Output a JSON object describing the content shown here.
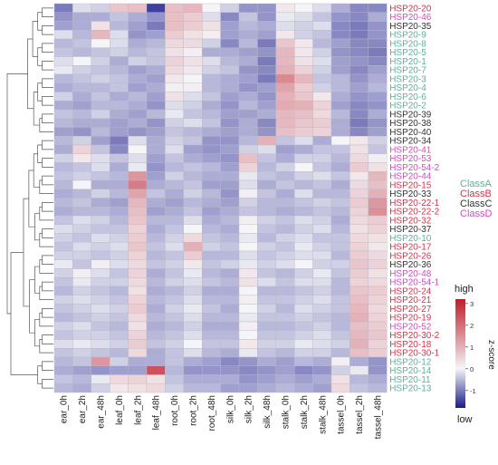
{
  "chart_data": {
    "type": "heatmap",
    "columns": [
      "ear_0h",
      "ear_2h",
      "ear_48h",
      "leaf_0h",
      "leaf_2h",
      "leaf_48h",
      "root_0h",
      "root_2h",
      "root_48h",
      "silk_0h",
      "silk_2h",
      "silk_48h",
      "stalk_0h",
      "stalk_2h",
      "stalk_48h",
      "tassel_0h",
      "tassel_2h",
      "tassel_48h"
    ],
    "rows": [
      {
        "label": "HSP20-20",
        "class": "ClassB",
        "values": [
          -1.0,
          -0.2,
          -0.3,
          0.7,
          0.8,
          -1.5,
          0.8,
          0.9,
          0.0,
          -0.3,
          -0.8,
          -0.8,
          0.2,
          0.0,
          -0.2,
          -0.6,
          -0.9,
          -0.9
        ]
      },
      {
        "label": "HSP20-46",
        "class": "ClassD",
        "values": [
          -0.8,
          -0.6,
          -0.6,
          -0.4,
          -0.6,
          -0.8,
          0.8,
          0.6,
          -0.2,
          -0.9,
          -0.4,
          -0.8,
          -0.1,
          -0.2,
          -0.4,
          -0.8,
          -0.9,
          -0.6
        ]
      },
      {
        "label": "HSP20-35",
        "class": "ClassC",
        "values": [
          -0.7,
          -0.6,
          0.3,
          -0.5,
          -0.7,
          -1.0,
          0.8,
          0.6,
          0.3,
          -0.7,
          -0.5,
          -0.6,
          -0.2,
          -0.3,
          -0.2,
          -0.9,
          -1.0,
          -0.8
        ]
      },
      {
        "label": "HSP20-9",
        "class": "ClassA",
        "values": [
          -0.2,
          -0.5,
          0.9,
          -0.2,
          -0.8,
          -0.7,
          0.6,
          0.3,
          0.1,
          -0.7,
          -0.6,
          -0.7,
          0.2,
          -0.3,
          -0.4,
          -0.9,
          -1.0,
          -0.8
        ]
      },
      {
        "label": "HSP20-8",
        "class": "ClassA",
        "values": [
          -0.5,
          -0.4,
          0.0,
          -0.2,
          -0.6,
          -0.5,
          0.4,
          0.4,
          -0.3,
          -0.9,
          -0.5,
          -1.0,
          0.7,
          0.2,
          -0.5,
          -0.7,
          -0.9,
          -0.9
        ]
      },
      {
        "label": "HSP20-5",
        "class": "ClassA",
        "values": [
          -0.4,
          -0.5,
          -0.4,
          -0.3,
          -0.5,
          -0.4,
          0.3,
          0.1,
          -0.6,
          -0.6,
          -0.7,
          -0.8,
          0.9,
          0.2,
          -0.3,
          -0.8,
          -0.9,
          -1.0
        ]
      },
      {
        "label": "HSP20-1",
        "class": "ClassA",
        "values": [
          -0.2,
          0.0,
          -0.3,
          -0.6,
          -0.3,
          -0.4,
          0.5,
          0.3,
          -0.2,
          -0.5,
          -0.6,
          -1.0,
          0.9,
          0.3,
          -0.2,
          -0.7,
          -0.8,
          -0.9
        ]
      },
      {
        "label": "HSP20-7",
        "class": "ClassA",
        "values": [
          -0.1,
          -0.3,
          -0.4,
          -0.5,
          -0.7,
          -0.6,
          0.4,
          0.2,
          -0.3,
          -0.4,
          -0.8,
          -0.9,
          1.0,
          0.5,
          -0.3,
          -0.7,
          -0.9,
          -0.7
        ]
      },
      {
        "label": "HSP20-3",
        "class": "ClassA",
        "values": [
          -0.5,
          -0.4,
          -0.3,
          -0.4,
          -0.6,
          -0.7,
          0.2,
          0.0,
          -0.5,
          -0.6,
          -0.7,
          -1.0,
          1.6,
          0.9,
          -0.4,
          -0.5,
          -0.8,
          -0.6
        ]
      },
      {
        "label": "HSP20-4",
        "class": "ClassA",
        "values": [
          -0.6,
          -0.5,
          -0.5,
          -0.4,
          -0.7,
          -0.6,
          0.1,
          0.1,
          -0.5,
          -0.6,
          -0.8,
          -0.7,
          1.2,
          0.6,
          -0.3,
          -0.5,
          -0.7,
          -0.5
        ]
      },
      {
        "label": "HSP20-6",
        "class": "ClassA",
        "values": [
          -0.3,
          -0.6,
          -0.4,
          -0.6,
          -0.5,
          -0.7,
          0.3,
          -0.2,
          -0.4,
          -0.7,
          -0.6,
          -0.8,
          1.0,
          0.7,
          0.2,
          -0.6,
          -0.8,
          -0.7
        ]
      },
      {
        "label": "HSP20-2",
        "class": "ClassA",
        "values": [
          -0.6,
          -0.7,
          -0.5,
          -0.5,
          -0.6,
          -0.8,
          -0.2,
          -0.3,
          -0.6,
          -0.8,
          -0.5,
          -0.7,
          1.1,
          1.0,
          0.5,
          -0.7,
          -0.9,
          -0.8
        ]
      },
      {
        "label": "HSP20-39",
        "class": "ClassC",
        "values": [
          -0.4,
          -0.5,
          -0.3,
          -0.6,
          -0.7,
          -0.5,
          -0.1,
          -0.4,
          -0.5,
          -0.7,
          -0.7,
          -0.6,
          0.9,
          0.8,
          0.4,
          -0.5,
          -0.9,
          -0.6
        ]
      },
      {
        "label": "HSP20-38",
        "class": "ClassC",
        "values": [
          -0.5,
          -0.6,
          -0.6,
          -0.7,
          -0.6,
          -0.8,
          -0.3,
          -0.2,
          -0.4,
          -0.8,
          -0.6,
          -0.9,
          0.9,
          0.7,
          0.6,
          -0.6,
          -1.0,
          -0.8
        ]
      },
      {
        "label": "HSP20-40",
        "class": "ClassC",
        "values": [
          -0.7,
          -0.8,
          -0.5,
          -0.7,
          -0.8,
          -0.7,
          -0.4,
          -0.5,
          -0.6,
          -0.7,
          -0.6,
          -0.8,
          0.8,
          0.6,
          0.5,
          -0.6,
          -0.9,
          -0.7
        ]
      },
      {
        "label": "HSP20-34",
        "class": "ClassC",
        "values": [
          -0.5,
          -0.3,
          -0.7,
          -1.0,
          -0.2,
          -0.6,
          -0.3,
          -0.4,
          -0.8,
          -0.8,
          -0.5,
          1.0,
          -0.4,
          -0.2,
          -0.6,
          0.0,
          0.2,
          -0.3
        ]
      },
      {
        "label": "HSP20-41",
        "class": "ClassD",
        "values": [
          -0.6,
          0.5,
          -0.4,
          -0.9,
          0.0,
          -0.6,
          -0.2,
          -0.7,
          -0.8,
          -0.7,
          -0.3,
          -0.2,
          -0.7,
          -0.6,
          -0.4,
          -0.4,
          0.3,
          -0.4
        ]
      },
      {
        "label": "HSP20-53",
        "class": "ClassD",
        "values": [
          -0.3,
          0.2,
          -0.2,
          -0.4,
          -0.2,
          -0.7,
          -0.4,
          -0.6,
          -0.7,
          -0.8,
          0.8,
          -0.4,
          -0.6,
          -0.3,
          -0.3,
          -0.5,
          0.4,
          0.1
        ]
      },
      {
        "label": "HSP20-54-2",
        "class": "ClassD",
        "values": [
          -0.5,
          -0.4,
          -0.2,
          -0.6,
          -0.1,
          -0.8,
          -0.5,
          -0.4,
          -0.5,
          -0.7,
          0.5,
          -0.5,
          -0.3,
          0.0,
          -0.4,
          -0.6,
          0.6,
          0.3
        ]
      },
      {
        "label": "HSP20-44",
        "class": "ClassD",
        "values": [
          -0.4,
          -0.3,
          -0.4,
          -0.5,
          1.4,
          -0.7,
          -0.3,
          -0.5,
          -0.6,
          -0.6,
          -0.1,
          -0.4,
          -0.5,
          -0.3,
          -0.2,
          -0.4,
          0.2,
          0.9
        ]
      },
      {
        "label": "HSP20-15",
        "class": "ClassB",
        "values": [
          -0.5,
          0.0,
          -0.6,
          -0.6,
          1.8,
          -0.6,
          -0.5,
          -0.4,
          -0.7,
          -0.7,
          -0.2,
          -0.6,
          -0.4,
          -0.5,
          -0.4,
          -0.6,
          0.4,
          0.8
        ]
      },
      {
        "label": "HSP20-33",
        "class": "ClassC",
        "values": [
          -0.6,
          -0.5,
          -0.3,
          -0.5,
          1.2,
          -0.4,
          -0.6,
          -0.3,
          -0.5,
          -0.8,
          0.1,
          -0.4,
          -0.6,
          -0.2,
          -0.5,
          -0.5,
          0.5,
          1.0
        ]
      },
      {
        "label": "HSP20-22-1",
        "class": "ClassB",
        "values": [
          -0.5,
          -0.4,
          -0.6,
          -0.7,
          0.9,
          -0.6,
          -0.7,
          -0.5,
          -0.6,
          -0.7,
          -0.3,
          -0.5,
          -0.5,
          -0.4,
          -0.3,
          -0.4,
          0.6,
          1.4
        ]
      },
      {
        "label": "HSP20-22-2",
        "class": "ClassB",
        "values": [
          -0.6,
          -0.5,
          -0.5,
          -0.6,
          0.8,
          -0.7,
          -0.6,
          -0.4,
          -0.7,
          -0.6,
          -0.4,
          -0.5,
          -0.6,
          -0.5,
          -0.4,
          -0.5,
          0.5,
          1.5
        ]
      },
      {
        "label": "HSP20-32",
        "class": "ClassB",
        "values": [
          -0.4,
          -0.2,
          -0.3,
          -0.5,
          0.7,
          -0.5,
          -0.5,
          -0.2,
          -0.6,
          -0.5,
          0.1,
          -0.3,
          -0.4,
          -0.2,
          -0.3,
          -0.6,
          0.4,
          0.6
        ]
      },
      {
        "label": "HSP20-37",
        "class": "ClassC",
        "values": [
          -0.2,
          -0.3,
          -0.4,
          -0.4,
          0.5,
          -0.6,
          -0.4,
          0.0,
          -0.5,
          -0.6,
          0.0,
          -0.4,
          -0.5,
          -0.3,
          -0.2,
          -0.5,
          0.3,
          0.5
        ]
      },
      {
        "label": "HSP20-10",
        "class": "ClassA",
        "values": [
          -0.3,
          -0.4,
          -0.2,
          -0.3,
          0.6,
          -0.5,
          -0.3,
          0.4,
          -0.4,
          -0.5,
          -0.1,
          -0.5,
          -0.3,
          -0.2,
          -0.4,
          -0.4,
          0.4,
          0.3
        ]
      },
      {
        "label": "HSP20-17",
        "class": "ClassB",
        "values": [
          -0.4,
          -0.2,
          -0.3,
          -0.2,
          0.7,
          -0.4,
          -0.2,
          1.0,
          -0.3,
          -0.4,
          0.0,
          -0.3,
          -0.4,
          -0.1,
          -0.3,
          -0.4,
          0.5,
          0.2
        ]
      },
      {
        "label": "HSP20-26",
        "class": "ClassB",
        "values": [
          -0.3,
          -0.3,
          -0.4,
          -0.3,
          0.5,
          -0.5,
          -0.4,
          0.6,
          -0.5,
          -0.5,
          -0.2,
          -0.4,
          -0.3,
          -0.2,
          -0.2,
          -0.5,
          0.6,
          0.4
        ]
      },
      {
        "label": "HSP20-36",
        "class": "ClassC",
        "values": [
          -0.1,
          -0.4,
          0.1,
          -0.2,
          0.4,
          -0.4,
          -0.3,
          0.2,
          -0.4,
          -0.3,
          -0.1,
          -0.3,
          -0.2,
          0.0,
          -0.3,
          -0.3,
          0.7,
          0.5
        ]
      },
      {
        "label": "HSP20-48",
        "class": "ClassD",
        "values": [
          -0.3,
          0.1,
          -0.2,
          -0.4,
          0.5,
          -0.6,
          -0.4,
          -0.1,
          -0.5,
          -0.6,
          0.2,
          -0.4,
          -0.5,
          -0.3,
          -0.1,
          -0.4,
          0.6,
          0.3
        ]
      },
      {
        "label": "HSP20-54-1",
        "class": "ClassD",
        "values": [
          -0.4,
          -0.1,
          -0.3,
          -0.3,
          0.4,
          -0.5,
          -0.3,
          -0.2,
          -0.4,
          -0.5,
          0.3,
          -0.2,
          -0.4,
          -0.2,
          -0.2,
          -0.5,
          0.5,
          0.4
        ]
      },
      {
        "label": "HSP20-24",
        "class": "ClassB",
        "values": [
          -0.5,
          -0.3,
          -0.4,
          -0.5,
          0.3,
          -0.6,
          -0.5,
          -0.3,
          -0.6,
          -0.6,
          0.0,
          -0.5,
          -0.5,
          -0.4,
          -0.3,
          -0.5,
          0.7,
          0.6
        ]
      },
      {
        "label": "HSP20-21",
        "class": "ClassB",
        "values": [
          -0.3,
          -0.2,
          -0.3,
          -0.4,
          0.5,
          -0.5,
          -0.4,
          -0.2,
          -0.5,
          -0.5,
          0.1,
          -0.4,
          -0.4,
          -0.3,
          -0.2,
          -0.4,
          0.8,
          0.5
        ]
      },
      {
        "label": "HSP20-27",
        "class": "ClassB",
        "values": [
          -0.4,
          -0.3,
          -0.2,
          -0.3,
          0.6,
          -0.6,
          -0.3,
          -0.1,
          -0.4,
          -0.6,
          0.0,
          -0.3,
          -0.5,
          -0.2,
          -0.3,
          -0.4,
          0.9,
          0.4
        ]
      },
      {
        "label": "HSP20-19",
        "class": "ClassB",
        "values": [
          -0.5,
          -0.4,
          -0.3,
          -0.4,
          0.4,
          -0.5,
          -0.4,
          -0.2,
          -0.5,
          -0.5,
          -0.1,
          -0.4,
          -0.4,
          -0.3,
          -0.4,
          -0.5,
          1.0,
          0.5
        ]
      },
      {
        "label": "HSP20-52",
        "class": "ClassD",
        "values": [
          -0.3,
          -0.2,
          -0.4,
          -0.5,
          0.3,
          -0.6,
          -0.5,
          -0.3,
          -0.6,
          -0.6,
          0.1,
          -0.5,
          -0.5,
          -0.4,
          -0.3,
          -0.5,
          0.8,
          0.6
        ]
      },
      {
        "label": "HSP20-30-2",
        "class": "ClassB",
        "values": [
          -0.4,
          -0.3,
          -0.3,
          -0.4,
          0.5,
          -0.5,
          -0.4,
          -0.2,
          -0.5,
          -0.5,
          0.0,
          -0.4,
          -0.4,
          -0.3,
          -0.2,
          -0.4,
          0.9,
          0.7
        ]
      },
      {
        "label": "HSP20-18",
        "class": "ClassB",
        "values": [
          -0.2,
          -0.1,
          -0.2,
          -0.3,
          0.6,
          -0.4,
          -0.3,
          0.0,
          -0.4,
          -0.4,
          0.2,
          -0.3,
          -0.3,
          -0.1,
          -0.2,
          -0.3,
          1.0,
          0.5
        ]
      },
      {
        "label": "HSP20-30-1",
        "class": "ClassB",
        "values": [
          -0.4,
          -0.3,
          -0.4,
          -0.5,
          0.4,
          -0.6,
          -0.4,
          -0.2,
          -0.5,
          -0.6,
          -0.1,
          -0.4,
          -0.5,
          -0.3,
          -0.3,
          -0.5,
          0.8,
          0.6
        ]
      },
      {
        "label": "HSP20-12",
        "class": "ClassA",
        "values": [
          -0.5,
          -0.4,
          1.4,
          -0.3,
          -0.6,
          -0.6,
          -0.4,
          -0.6,
          -0.7,
          -0.9,
          -0.8,
          -0.6,
          -0.7,
          -0.5,
          -0.6,
          0.1,
          -0.6,
          -0.8
        ]
      },
      {
        "label": "HSP20-14",
        "class": "ClassA",
        "values": [
          -0.6,
          -0.7,
          -0.8,
          -0.7,
          -0.7,
          2.4,
          -0.5,
          -0.8,
          -0.8,
          -0.8,
          -0.9,
          -0.8,
          -0.7,
          -0.9,
          -0.8,
          -0.3,
          -0.1,
          -0.8
        ]
      },
      {
        "label": "HSP20-11",
        "class": "ClassA",
        "values": [
          -0.4,
          -0.5,
          -0.1,
          0.4,
          0.5,
          0.3,
          -0.4,
          -0.6,
          -0.6,
          -0.6,
          -0.8,
          -0.7,
          -0.6,
          -0.7,
          -0.6,
          0.3,
          -0.5,
          -0.6
        ]
      },
      {
        "label": "HSP20-13",
        "class": "ClassA",
        "values": [
          -0.5,
          -0.6,
          -0.3,
          0.2,
          0.3,
          0.4,
          -0.3,
          -0.5,
          -0.5,
          -0.7,
          -0.7,
          -0.6,
          -0.5,
          -0.6,
          -0.7,
          0.4,
          -0.4,
          -0.5
        ]
      }
    ],
    "classes": [
      {
        "name": "ClassA",
        "color": "#5faf9a"
      },
      {
        "name": "ClassB",
        "color": "#d8324a"
      },
      {
        "name": "ClassC",
        "color": "#333333"
      },
      {
        "name": "ClassD",
        "color": "#d44bc0"
      }
    ],
    "color_scale": {
      "min": -1.8,
      "max": 3.2,
      "low_color": "#1a1a8c",
      "mid_color": "#f5f5f8",
      "high_color": "#c01c2a"
    },
    "legend": {
      "title": "z-score",
      "high_label": "high",
      "low_label": "low",
      "ticks": [
        -1,
        0,
        1,
        2,
        3
      ],
      "placement": "right"
    }
  }
}
